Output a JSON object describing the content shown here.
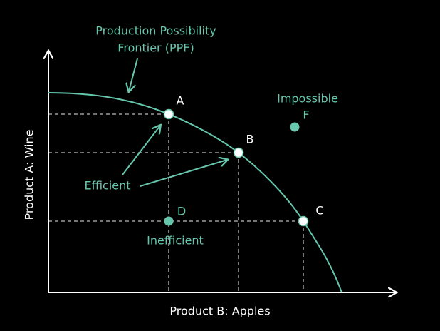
{
  "title": {
    "line1": "Production Possibility",
    "line2": "Frontier (PPF)"
  },
  "axes": {
    "y_label": "Product A: Wine",
    "x_label": "Product B: Apples"
  },
  "points": [
    {
      "label": "A"
    },
    {
      "label": "B"
    },
    {
      "label": "C"
    },
    {
      "label": "D"
    },
    {
      "label": "F"
    }
  ],
  "annotations": {
    "impossible": "Impossible",
    "efficient": "Efficient",
    "inefficient": "Inefficient"
  }
}
